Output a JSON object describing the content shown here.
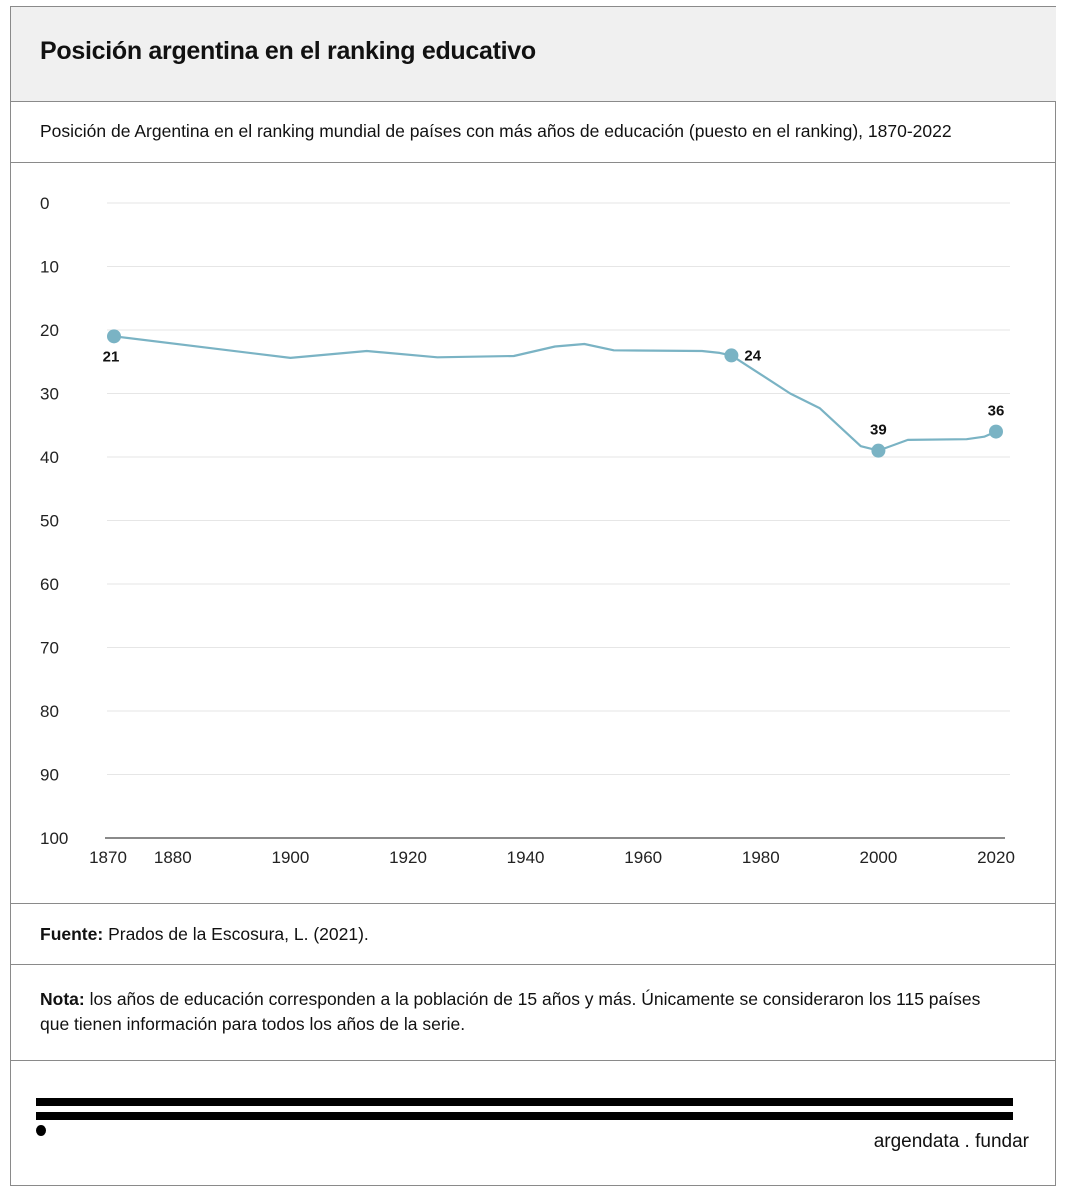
{
  "header": {
    "title": "Posición argentina en el ranking educativo"
  },
  "subtitle": "Posición de Argentina en el ranking mundial de países con más años de educación (puesto en el ranking), 1870-2022",
  "chart_data": {
    "type": "line",
    "title": "Posición argentina en el ranking educativo",
    "subtitle": "Posición de Argentina en el ranking mundial de países con más años de educación (puesto en el ranking), 1870-2022",
    "xlabel": "",
    "ylabel": "",
    "xlim": [
      1870,
      2022
    ],
    "ylim": [
      0,
      100
    ],
    "y_inverted": true,
    "grid": true,
    "x_ticks": [
      1870,
      1880,
      1900,
      1920,
      1940,
      1960,
      1980,
      2000,
      2020
    ],
    "y_ticks": [
      0,
      10,
      20,
      30,
      40,
      50,
      60,
      70,
      80,
      90,
      100
    ],
    "line_color": "#7ab3c4",
    "series": [
      {
        "x": [
          1870,
          1900,
          1913,
          1925,
          1938,
          1945,
          1950,
          1955,
          1970,
          1973,
          1975,
          1980,
          1985,
          1990,
          1997,
          2000,
          2005,
          2015,
          2018,
          2020
        ],
        "y": [
          21,
          24.4,
          23.3,
          24.3,
          24.1,
          22.6,
          22.2,
          23.2,
          23.3,
          23.6,
          24,
          27,
          30,
          32.3,
          38.3,
          39,
          37.3,
          37.2,
          36.8,
          36
        ]
      }
    ],
    "annotations": [
      {
        "x": 1870,
        "y": 21,
        "label": "21",
        "pos": "below"
      },
      {
        "x": 1975,
        "y": 24,
        "label": "24",
        "pos": "right"
      },
      {
        "x": 2000,
        "y": 39,
        "label": "39",
        "pos": "above"
      },
      {
        "x": 2020,
        "y": 36,
        "label": "36",
        "pos": "above"
      }
    ]
  },
  "source": {
    "label": "Fuente:",
    "text": " Prados de la Escosura, L. (2021)."
  },
  "note": {
    "label": "Nota:",
    "text": " los años de educación corresponden a la población de 15 años y más. Únicamente se consideraron los 115 países que tienen información para todos los años de la serie."
  },
  "brand": "argendata . fundar"
}
